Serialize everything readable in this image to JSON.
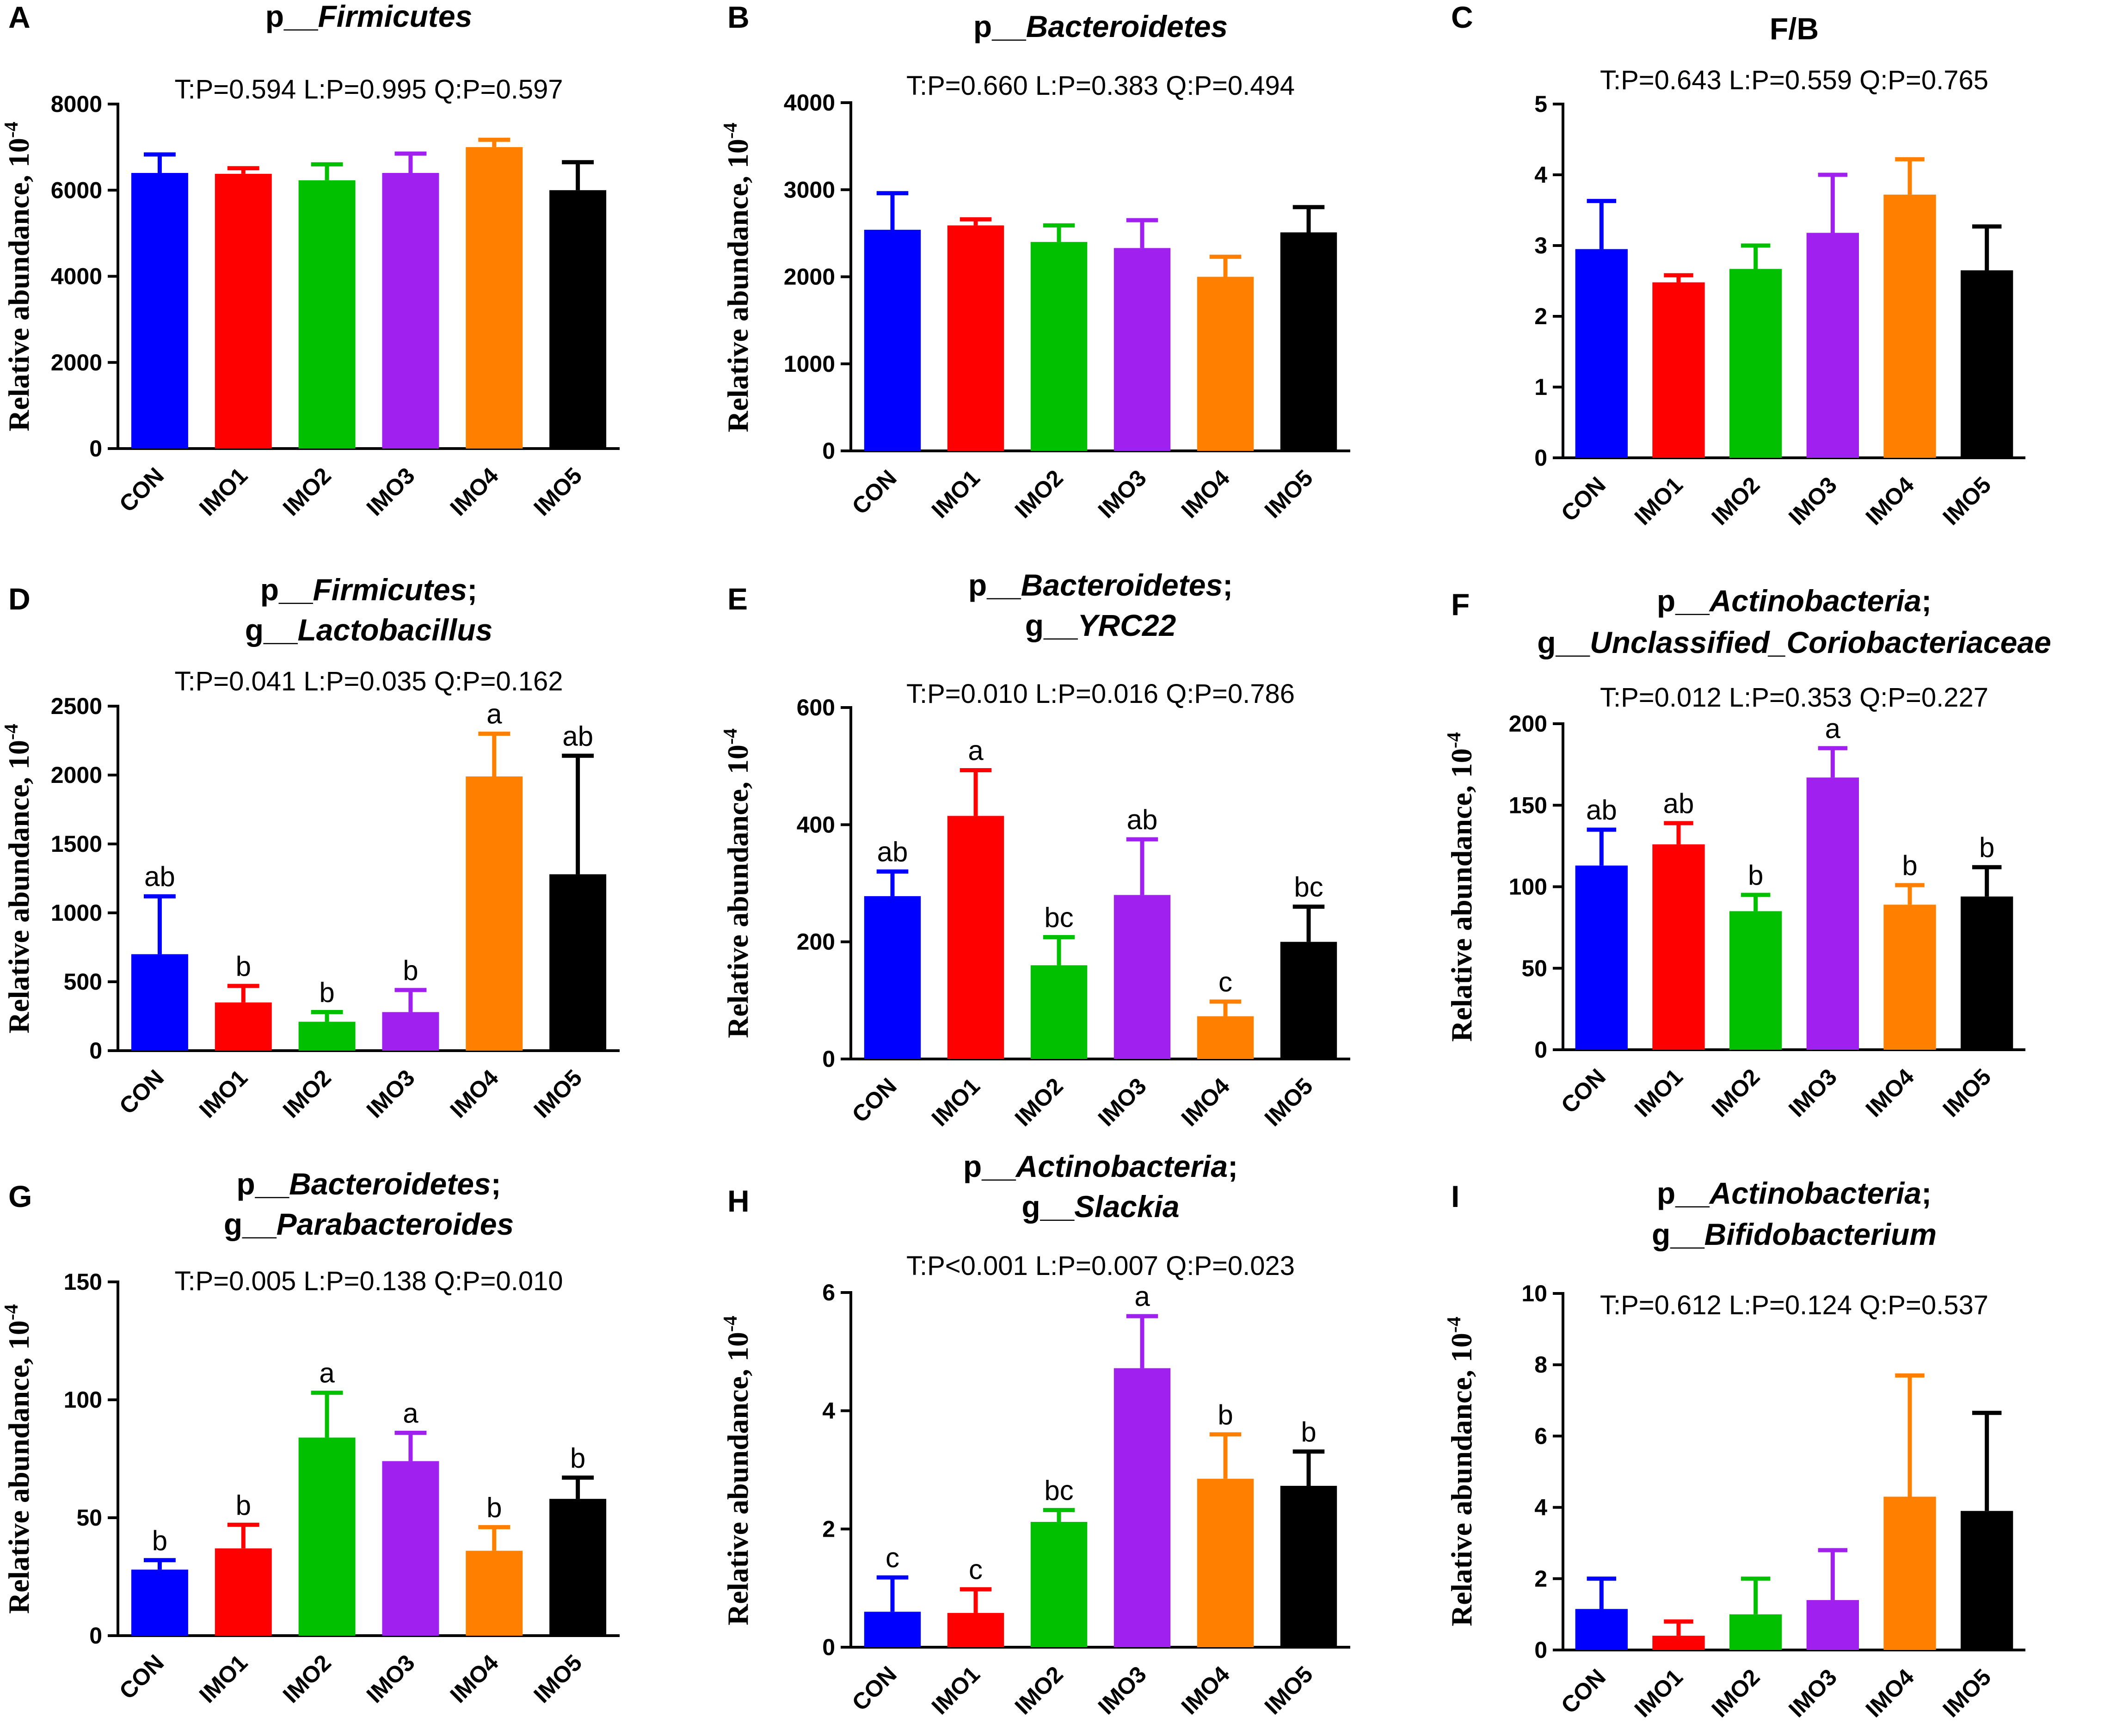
{
  "chart_data": [
    {
      "type": "bar",
      "panel": "A",
      "title_lines": [
        [
          {
            "t": "p__",
            "i": false
          },
          {
            "t": "Firmicutes",
            "i": true
          }
        ]
      ],
      "stats": "T:P=0.594   L:P=0.995   Q:P=0.597",
      "ylabel": "Relative abundance, 10",
      "ylabel_exp": "-4",
      "ylim": [
        0,
        8000
      ],
      "yticks": [
        "0",
        "2000",
        "4000",
        "6000",
        "8000"
      ],
      "categories": [
        "CON",
        "IMO1",
        "IMO2",
        "IMO3",
        "IMO4",
        "IMO5"
      ],
      "colors": [
        "#0000ff",
        "#ff0000",
        "#00c000",
        "#a020f0",
        "#ff8000",
        "#000000"
      ],
      "values": [
        6400,
        6380,
        6230,
        6400,
        7000,
        6000
      ],
      "errors": [
        430,
        130,
        370,
        450,
        170,
        650
      ],
      "letters": [
        "",
        "",
        "",
        "",
        "",
        ""
      ]
    },
    {
      "type": "bar",
      "panel": "B",
      "title_lines": [
        [
          {
            "t": "p__",
            "i": false
          },
          {
            "t": "Bacteroidetes",
            "i": true
          }
        ]
      ],
      "stats": "T:P=0.660   L:P=0.383   Q:P=0.494",
      "ylabel": "Relative abundance, 10",
      "ylabel_exp": "-4",
      "ylim": [
        0,
        4000
      ],
      "yticks": [
        "0",
        "1000",
        "2000",
        "3000",
        "4000"
      ],
      "categories": [
        "CON",
        "IMO1",
        "IMO2",
        "IMO3",
        "IMO4",
        "IMO5"
      ],
      "colors": [
        "#0000ff",
        "#ff0000",
        "#00c000",
        "#a020f0",
        "#ff8000",
        "#000000"
      ],
      "values": [
        2540,
        2590,
        2400,
        2330,
        2000,
        2510
      ],
      "errors": [
        420,
        70,
        190,
        320,
        230,
        290
      ],
      "letters": [
        "",
        "",
        "",
        "",
        "",
        ""
      ]
    },
    {
      "type": "bar",
      "panel": "C",
      "title_lines": [
        [
          {
            "t": "F/B",
            "i": false
          }
        ]
      ],
      "stats": "T:P=0.643   L:P=0.559   Q:P=0.765",
      "ylabel": "",
      "ylabel_exp": "",
      "ylim": [
        0,
        5
      ],
      "yticks": [
        "0",
        "1",
        "2",
        "3",
        "4",
        "5"
      ],
      "categories": [
        "CON",
        "IMO1",
        "IMO2",
        "IMO3",
        "IMO4",
        "IMO5"
      ],
      "colors": [
        "#0000ff",
        "#ff0000",
        "#00c000",
        "#a020f0",
        "#ff8000",
        "#000000"
      ],
      "values": [
        2.95,
        2.48,
        2.67,
        3.18,
        3.72,
        2.65
      ],
      "errors": [
        0.68,
        0.1,
        0.33,
        0.82,
        0.5,
        0.62
      ],
      "letters": [
        "",
        "",
        "",
        "",
        "",
        ""
      ]
    },
    {
      "type": "bar",
      "panel": "D",
      "title_lines": [
        [
          {
            "t": "p__",
            "i": false
          },
          {
            "t": "Firmicutes",
            "i": true
          },
          {
            "t": ";",
            "i": false
          }
        ],
        [
          {
            "t": "g__",
            "i": false
          },
          {
            "t": "Lactobacillus",
            "i": true
          }
        ]
      ],
      "stats": "T:P=0.041   L:P=0.035   Q:P=0.162",
      "ylabel": "Relative abundance, 10",
      "ylabel_exp": "-4",
      "ylim": [
        0,
        2500
      ],
      "yticks": [
        "0",
        "500",
        "1000",
        "1500",
        "2000",
        "2500"
      ],
      "categories": [
        "CON",
        "IMO1",
        "IMO2",
        "IMO3",
        "IMO4",
        "IMO5"
      ],
      "colors": [
        "#0000ff",
        "#ff0000",
        "#00c000",
        "#a020f0",
        "#ff8000",
        "#000000"
      ],
      "values": [
        700,
        350,
        210,
        280,
        1990,
        1280
      ],
      "errors": [
        420,
        120,
        70,
        160,
        310,
        860
      ],
      "letters": [
        "ab",
        "b",
        "b",
        "b",
        "a",
        "ab"
      ]
    },
    {
      "type": "bar",
      "panel": "E",
      "title_lines": [
        [
          {
            "t": "p__",
            "i": false
          },
          {
            "t": "Bacteroidetes",
            "i": true
          },
          {
            "t": ";",
            "i": false
          }
        ],
        [
          {
            "t": "g__",
            "i": false
          },
          {
            "t": "YRC22",
            "i": true
          }
        ]
      ],
      "stats": "T:P=0.010   L:P=0.016   Q:P=0.786",
      "ylabel": "Relative abundance, 10",
      "ylabel_exp": "-4",
      "ylim": [
        0,
        600
      ],
      "yticks": [
        "0",
        "200",
        "400",
        "600"
      ],
      "categories": [
        "CON",
        "IMO1",
        "IMO2",
        "IMO3",
        "IMO4",
        "IMO5"
      ],
      "colors": [
        "#0000ff",
        "#ff0000",
        "#00c000",
        "#a020f0",
        "#ff8000",
        "#000000"
      ],
      "values": [
        278,
        415,
        160,
        280,
        73,
        200
      ],
      "errors": [
        42,
        78,
        48,
        95,
        25,
        60
      ],
      "letters": [
        "ab",
        "a",
        "bc",
        "ab",
        "c",
        "bc"
      ]
    },
    {
      "type": "bar",
      "panel": "F",
      "title_lines": [
        [
          {
            "t": "p__",
            "i": false
          },
          {
            "t": "Actinobacteria",
            "i": true
          },
          {
            "t": ";",
            "i": false
          }
        ],
        [
          {
            "t": "g__",
            "i": false
          },
          {
            "t": "Unclassified_Coriobacteriaceae",
            "i": true
          }
        ]
      ],
      "stats": "T:P=0.012   L:P=0.353   Q:P=0.227",
      "ylabel": "Relative abundance, 10",
      "ylabel_exp": "-4",
      "ylim": [
        0,
        200
      ],
      "yticks": [
        "0",
        "50",
        "100",
        "150",
        "200"
      ],
      "categories": [
        "CON",
        "IMO1",
        "IMO2",
        "IMO3",
        "IMO4",
        "IMO5"
      ],
      "colors": [
        "#0000ff",
        "#ff0000",
        "#00c000",
        "#a020f0",
        "#ff8000",
        "#000000"
      ],
      "values": [
        113,
        126,
        85,
        167,
        89,
        94
      ],
      "errors": [
        22,
        13,
        10,
        18,
        12,
        18
      ],
      "letters": [
        "ab",
        "ab",
        "b",
        "a",
        "b",
        "b"
      ]
    },
    {
      "type": "bar",
      "panel": "G",
      "title_lines": [
        [
          {
            "t": "p__",
            "i": false
          },
          {
            "t": "Bacteroidetes",
            "i": true
          },
          {
            "t": ";",
            "i": false
          }
        ],
        [
          {
            "t": "g__",
            "i": false
          },
          {
            "t": "Parabacteroides",
            "i": true
          }
        ]
      ],
      "stats": "T:P=0.005   L:P=0.138   Q:P=0.010",
      "ylabel": "Relative abundance, 10",
      "ylabel_exp": "-4",
      "ylim": [
        0,
        150
      ],
      "yticks": [
        "0",
        "50",
        "100",
        "150"
      ],
      "categories": [
        "CON",
        "IMO1",
        "IMO2",
        "IMO3",
        "IMO4",
        "IMO5"
      ],
      "colors": [
        "#0000ff",
        "#ff0000",
        "#00c000",
        "#a020f0",
        "#ff8000",
        "#000000"
      ],
      "values": [
        28,
        37,
        84,
        74,
        36,
        58
      ],
      "errors": [
        4,
        10,
        19,
        12,
        10,
        9
      ],
      "letters": [
        "b",
        "b",
        "a",
        "a",
        "b",
        "b"
      ]
    },
    {
      "type": "bar",
      "panel": "H",
      "title_lines": [
        [
          {
            "t": "p__",
            "i": false
          },
          {
            "t": "Actinobacteria",
            "i": true
          },
          {
            "t": ";",
            "i": false
          }
        ],
        [
          {
            "t": "g__",
            "i": false
          },
          {
            "t": "Slackia",
            "i": true
          }
        ]
      ],
      "stats": "T:P<0.001   L:P=0.007   Q:P=0.023",
      "ylabel": "Relative abundance, 10",
      "ylabel_exp": "-4",
      "ylim": [
        0,
        6
      ],
      "yticks": [
        "0",
        "2",
        "4",
        "6"
      ],
      "categories": [
        "CON",
        "IMO1",
        "IMO2",
        "IMO3",
        "IMO4",
        "IMO5"
      ],
      "colors": [
        "#0000ff",
        "#ff0000",
        "#00c000",
        "#a020f0",
        "#ff8000",
        "#000000"
      ],
      "values": [
        0.6,
        0.58,
        2.12,
        4.72,
        2.85,
        2.73
      ],
      "errors": [
        0.58,
        0.4,
        0.2,
        0.88,
        0.75,
        0.58
      ],
      "letters": [
        "c",
        "c",
        "bc",
        "a",
        "b",
        "b"
      ]
    },
    {
      "type": "bar",
      "panel": "I",
      "title_lines": [
        [
          {
            "t": "p__",
            "i": false
          },
          {
            "t": "Actinobacteria",
            "i": true
          },
          {
            "t": ";",
            "i": false
          }
        ],
        [
          {
            "t": "g__",
            "i": false
          },
          {
            "t": "Bifidobacterium",
            "i": true
          }
        ]
      ],
      "stats": "T:P=0.612   L:P=0.124   Q:P=0.537",
      "ylabel": "Relative abundance, 10",
      "ylabel_exp": "-4",
      "ylim": [
        0,
        10
      ],
      "yticks": [
        "0",
        "2",
        "4",
        "6",
        "8",
        "10"
      ],
      "categories": [
        "CON",
        "IMO1",
        "IMO2",
        "IMO3",
        "IMO4",
        "IMO5"
      ],
      "colors": [
        "#0000ff",
        "#ff0000",
        "#00c000",
        "#a020f0",
        "#ff8000",
        "#000000"
      ],
      "values": [
        1.15,
        0.4,
        1.0,
        1.4,
        4.3,
        3.9
      ],
      "errors": [
        0.85,
        0.4,
        1.0,
        1.4,
        3.4,
        2.75
      ],
      "letters": [
        "",
        "",
        "",
        "",
        "",
        ""
      ]
    }
  ]
}
